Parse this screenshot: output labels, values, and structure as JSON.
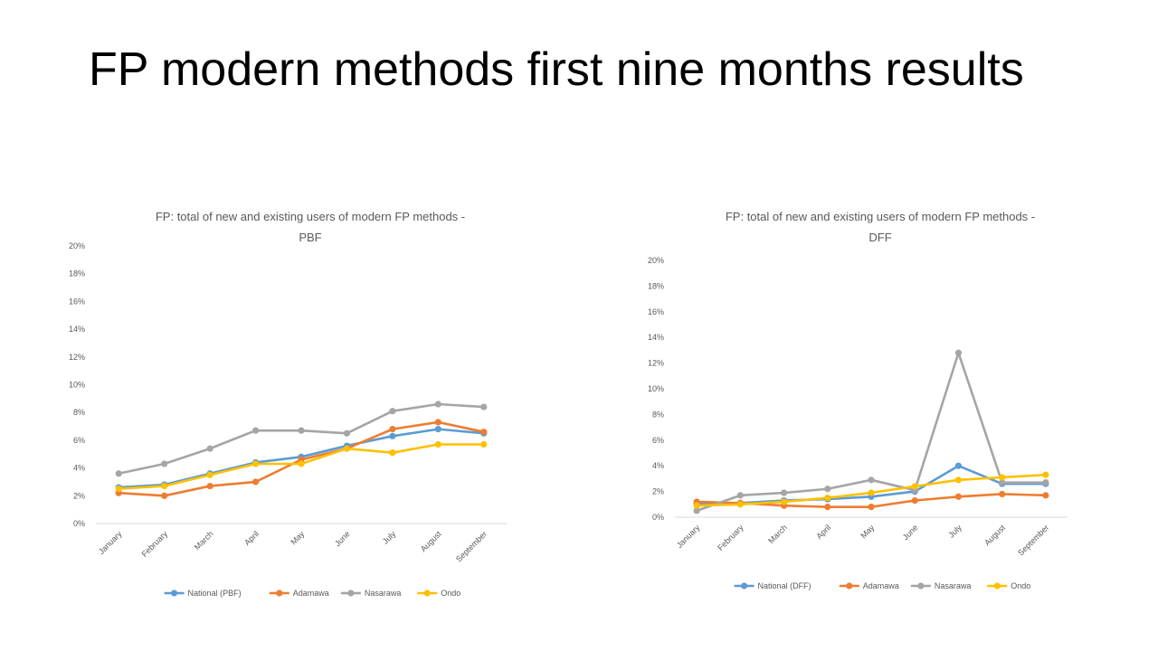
{
  "slide": {
    "title": "FP modern methods first nine months results"
  },
  "chart_data": [
    {
      "type": "line",
      "title_lines": [
        "FP: total of new and existing users of modern FP methods -",
        "PBF"
      ],
      "categories": [
        "January",
        "February",
        "March",
        "April",
        "May",
        "June",
        "July",
        "August",
        "September"
      ],
      "ylim": [
        0,
        20
      ],
      "yticks": [
        "0%",
        "2%",
        "4%",
        "6%",
        "8%",
        "10%",
        "12%",
        "14%",
        "16%",
        "18%",
        "20%"
      ],
      "grid": false,
      "legend": "bottom",
      "series": [
        {
          "name": "National (PBF)",
          "color": "#5B9BD5",
          "values": [
            2.6,
            2.8,
            3.6,
            4.4,
            4.8,
            5.6,
            6.3,
            6.8,
            6.5
          ]
        },
        {
          "name": "Adamawa",
          "color": "#ED7D31",
          "values": [
            2.2,
            2.0,
            2.7,
            3.0,
            4.6,
            5.4,
            6.8,
            7.3,
            6.6
          ]
        },
        {
          "name": "Nasarawa",
          "color": "#A5A5A5",
          "values": [
            3.6,
            4.3,
            5.4,
            6.7,
            6.7,
            6.5,
            8.1,
            8.6,
            8.4
          ]
        },
        {
          "name": "Ondo",
          "color": "#FFC000",
          "values": [
            2.5,
            2.7,
            3.5,
            4.3,
            4.3,
            5.4,
            5.1,
            5.7,
            5.7
          ]
        }
      ]
    },
    {
      "type": "line",
      "title_lines": [
        "FP: total of new and existing users of modern FP methods -",
        "DFF"
      ],
      "categories": [
        "January",
        "February",
        "March",
        "April",
        "May",
        "June",
        "July",
        "August",
        "September"
      ],
      "ylim": [
        0,
        20
      ],
      "yticks": [
        "0%",
        "2%",
        "4%",
        "6%",
        "8%",
        "10%",
        "12%",
        "14%",
        "16%",
        "18%",
        "20%"
      ],
      "grid": false,
      "legend": "bottom",
      "series": [
        {
          "name": "National (DFF)",
          "color": "#5B9BD5",
          "values": [
            1.0,
            1.1,
            1.3,
            1.4,
            1.6,
            2.0,
            4.0,
            2.6,
            2.6
          ]
        },
        {
          "name": "Adamawa",
          "color": "#ED7D31",
          "values": [
            1.2,
            1.1,
            0.9,
            0.8,
            0.8,
            1.3,
            1.6,
            1.8,
            1.7
          ]
        },
        {
          "name": "Nasarawa",
          "color": "#A5A5A5",
          "values": [
            0.5,
            1.7,
            1.9,
            2.2,
            2.9,
            2.1,
            12.8,
            2.7,
            2.7
          ]
        },
        {
          "name": "Ondo",
          "color": "#FFC000",
          "values": [
            0.9,
            1.0,
            1.2,
            1.5,
            1.9,
            2.4,
            2.9,
            3.1,
            3.3
          ]
        }
      ]
    }
  ]
}
